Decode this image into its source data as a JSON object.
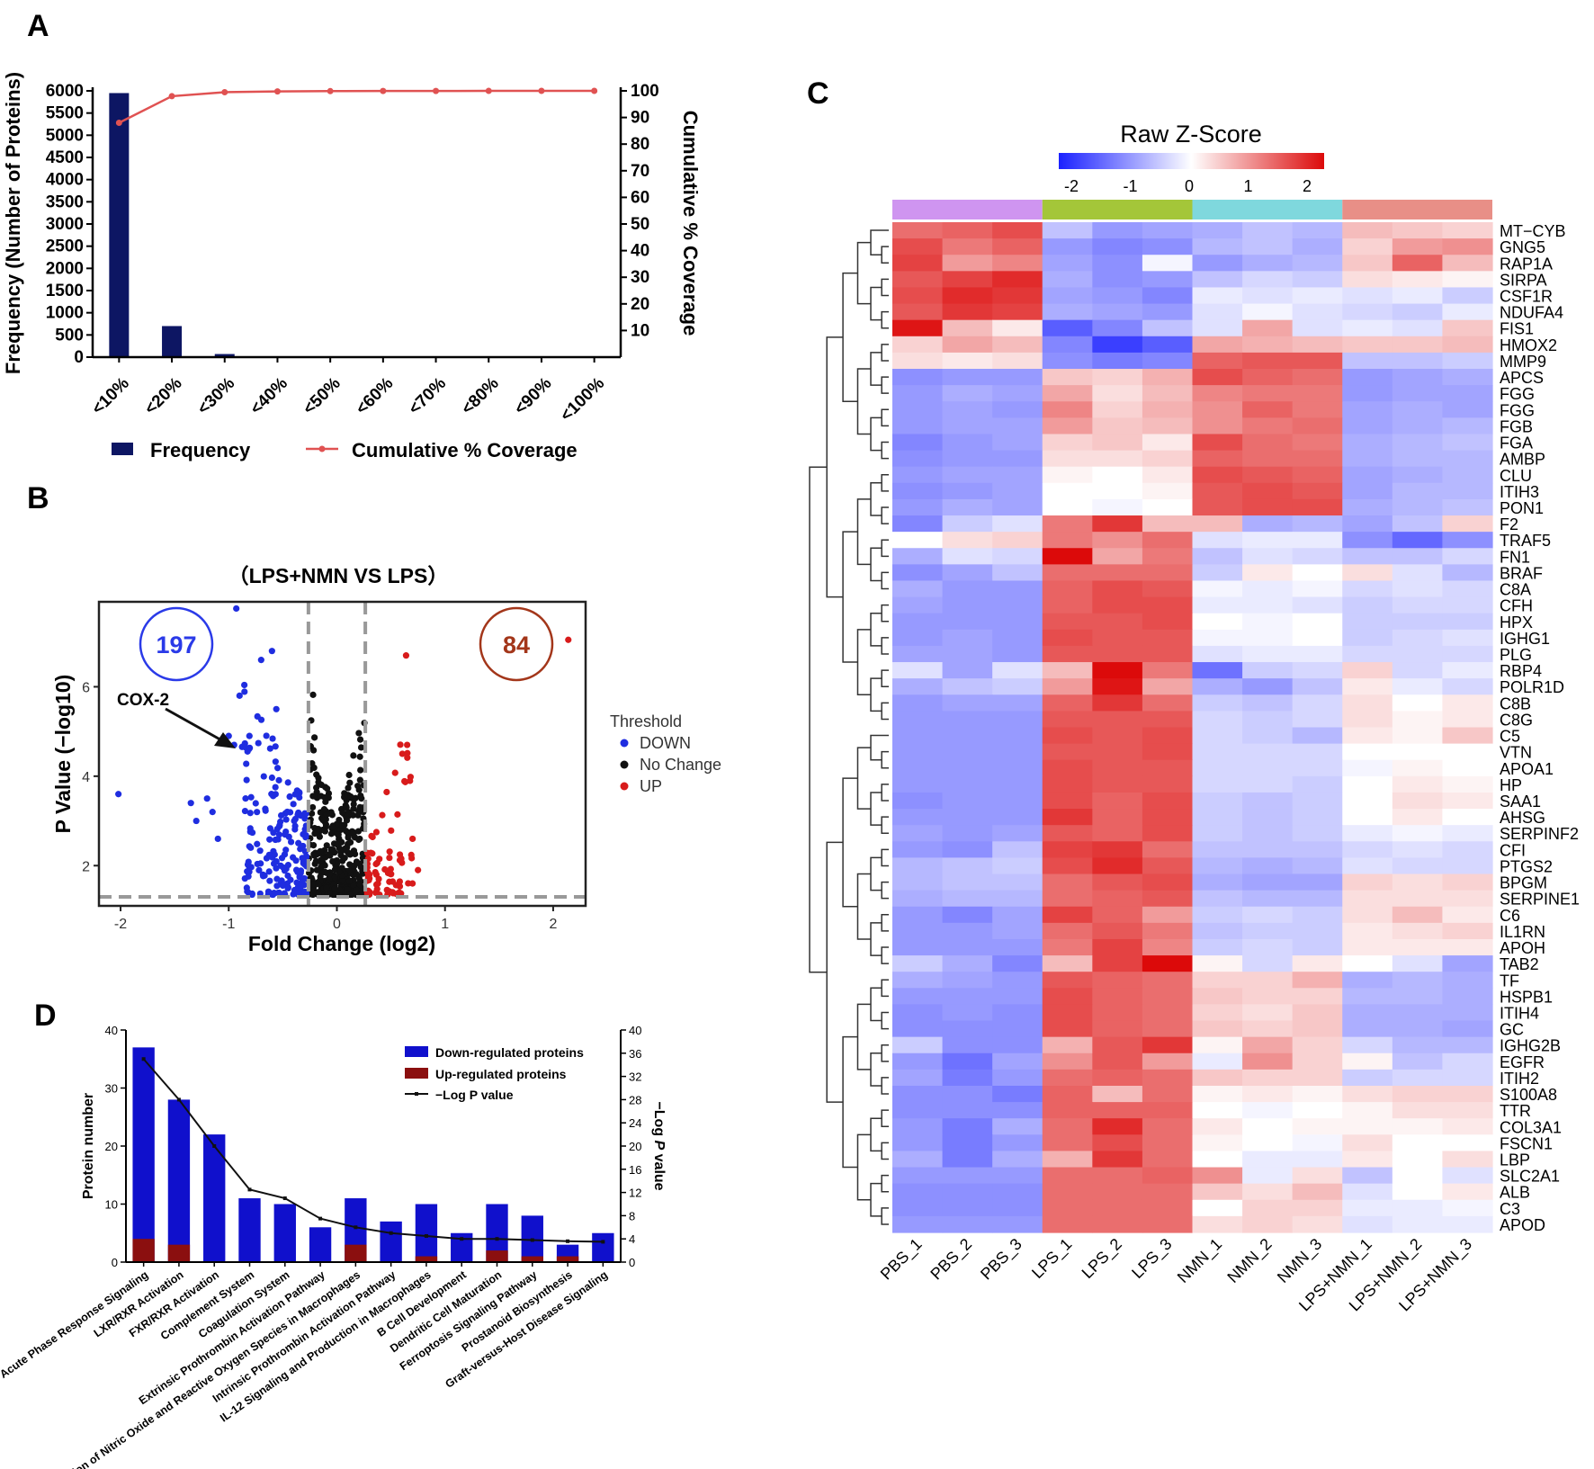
{
  "panel_labels": {
    "a": "A",
    "b": "B",
    "c": "C",
    "d": "D"
  },
  "chart_data": [
    {
      "panel": "A",
      "type": "bar",
      "categories": [
        "<10%",
        "<20%",
        "<30%",
        "<40%",
        "<50%",
        "<60%",
        "<70%",
        "<80%",
        "<90%",
        "<100%"
      ],
      "series": [
        {
          "name": "Frequency",
          "axis": "left",
          "color": "#0d1663",
          "values": [
            5950,
            700,
            70,
            20,
            15,
            12,
            12,
            10,
            10,
            10
          ]
        },
        {
          "name": "Cumulative % Coverage",
          "axis": "right",
          "type": "line",
          "color": "#e05252",
          "values": [
            88,
            98,
            99.5,
            99.8,
            99.9,
            99.95,
            99.97,
            99.98,
            99.99,
            100
          ]
        }
      ],
      "ylabel": "Frequency (Number of Proteins)",
      "y2label": "Cumulative % Coverage",
      "ylim": [
        0,
        6000
      ],
      "yticks": [
        "0",
        "500",
        "1000",
        "1500",
        "2000",
        "2500",
        "3000",
        "3500",
        "4000",
        "4500",
        "5000",
        "5500",
        "6000"
      ],
      "y2lim": [
        0,
        100
      ],
      "y2ticks": [
        "10",
        "20",
        "30",
        "40",
        "50",
        "60",
        "70",
        "80",
        "90",
        "100"
      ],
      "legend": [
        "Frequency",
        "Cumulative % Coverage"
      ]
    },
    {
      "panel": "B",
      "type": "scatter",
      "title": "（LPS+NMN VS LPS）",
      "xlabel": "Fold Change (log2)",
      "ylabel": "P Value (−log10)",
      "xlim": [
        -2.2,
        2.3
      ],
      "ylim": [
        1.1,
        7.9
      ],
      "xticks": [
        "-2",
        "-1",
        "0",
        "1",
        "2"
      ],
      "yticks": [
        "2",
        "4",
        "6"
      ],
      "thresholds": {
        "fc": [
          -0.263,
          0.263
        ],
        "p": 1.3
      },
      "counts": {
        "down": "197",
        "up": "84"
      },
      "annotation": "COX-2",
      "legend_title": "Threshold",
      "legend": [
        {
          "label": "DOWN",
          "color": "#1f2de0"
        },
        {
          "label": "No Change",
          "color": "#111111"
        },
        {
          "label": "UP",
          "color": "#d81b1b"
        }
      ],
      "highlight_points": [
        [
          -0.93,
          7.75
        ],
        [
          -2.02,
          3.6
        ],
        [
          2.14,
          7.05
        ],
        [
          0.64,
          6.7
        ],
        [
          -0.56,
          5.5
        ],
        [
          -0.22,
          5.82
        ]
      ]
    },
    {
      "panel": "C",
      "type": "heatmap",
      "title": "Raw Z-Score",
      "scale_ticks": [
        "-2",
        "-1",
        "0",
        "1",
        "2"
      ],
      "group_colors": [
        "#cf95f0",
        "#a4c639",
        "#7fd8dd",
        "#e88f87"
      ],
      "columns": [
        "PBS_1",
        "PBS_2",
        "PBS_3",
        "LPS_1",
        "LPS_2",
        "LPS_3",
        "NMN_1",
        "NMN_2",
        "NMN_3",
        "LPS+NMN_1",
        "LPS+NMN_2",
        "LPS+NMN_3"
      ],
      "rows": [
        "MT−CYB",
        "GNG5",
        "RAP1A",
        "SIRPA",
        "CSF1R",
        "NDUFA4",
        "FIS1",
        "HMOX2",
        "MMP9",
        "APCS",
        "FGG",
        "FGG",
        "FGB",
        "FGA",
        "AMBP",
        "CLU",
        "ITIH3",
        "PON1",
        "F2",
        "TRAF5",
        "FN1",
        "BRAF",
        "C8A",
        "CFH",
        "HPX",
        "IGHG1",
        "PLG",
        "RBP4",
        "POLR1D",
        "C8B",
        "C8G",
        "C5",
        "VTN",
        "APOA1",
        "HP",
        "SAA1",
        "AHSG",
        "SERPINF2",
        "CFI",
        "PTGS2",
        "BPGM",
        "SERPINE1",
        "C6",
        "IL1RN",
        "APOH",
        "TAB2",
        "TF",
        "HSPB1",
        "ITIH4",
        "GC",
        "IGHG2B",
        "EGFR",
        "ITIH2",
        "S100A8",
        "TTR",
        "COL3A1",
        "FSCN1",
        "LBP",
        "SLC2A1",
        "ALB",
        "C3",
        "APOD"
      ],
      "values": [
        [
          1.3,
          1.4,
          1.6,
          -0.6,
          -1.0,
          -0.9,
          -0.8,
          -0.6,
          -0.7,
          0.6,
          0.5,
          0.4
        ],
        [
          1.6,
          1.2,
          1.4,
          -1.0,
          -1.2,
          -1.1,
          -0.7,
          -0.6,
          -0.8,
          0.4,
          0.9,
          1.0
        ],
        [
          1.7,
          0.9,
          1.1,
          -0.9,
          -1.1,
          -0.1,
          -1.0,
          -0.8,
          -0.7,
          0.5,
          1.4,
          0.6
        ],
        [
          1.5,
          1.7,
          1.9,
          -0.8,
          -1.1,
          -1.0,
          -0.6,
          -0.4,
          -0.5,
          0.3,
          0.2,
          0.1
        ],
        [
          1.6,
          1.9,
          1.8,
          -0.9,
          -1.0,
          -1.2,
          -0.2,
          -0.3,
          -0.2,
          -0.3,
          -0.2,
          -0.5
        ],
        [
          1.5,
          1.8,
          1.7,
          -0.8,
          -0.9,
          -1.0,
          -0.3,
          -0.1,
          -0.3,
          -0.4,
          -0.5,
          -0.2
        ],
        [
          2.1,
          0.6,
          0.2,
          -1.6,
          -1.2,
          -0.6,
          -0.3,
          0.8,
          -0.3,
          -0.2,
          -0.3,
          0.5
        ],
        [
          0.4,
          0.8,
          0.6,
          -1.2,
          -1.9,
          -1.6,
          0.8,
          0.7,
          0.6,
          0.5,
          0.5,
          0.6
        ],
        [
          0.3,
          0.2,
          0.3,
          -1.1,
          -1.3,
          -1.2,
          1.4,
          1.5,
          1.5,
          -0.6,
          -0.6,
          -0.5
        ],
        [
          -1.1,
          -1.0,
          -1.0,
          0.5,
          0.4,
          0.7,
          1.6,
          1.4,
          1.3,
          -1.0,
          -0.9,
          -0.8
        ],
        [
          -1.0,
          -0.8,
          -0.9,
          0.8,
          0.3,
          0.6,
          1.1,
          1.2,
          1.2,
          -1.0,
          -0.9,
          -0.9
        ],
        [
          -1.0,
          -0.9,
          -1.0,
          1.1,
          0.4,
          0.7,
          1.0,
          1.4,
          1.2,
          -0.9,
          -0.8,
          -0.9
        ],
        [
          -1.0,
          -0.9,
          -0.9,
          0.9,
          0.5,
          0.6,
          1.0,
          1.2,
          1.3,
          -0.9,
          -0.8,
          -0.7
        ],
        [
          -1.2,
          -1.0,
          -0.9,
          0.4,
          0.5,
          0.2,
          1.6,
          1.3,
          1.2,
          -0.8,
          -0.7,
          -0.6
        ],
        [
          -1.1,
          -1.0,
          -1.0,
          0.3,
          0.3,
          0.4,
          1.4,
          1.3,
          1.3,
          -0.8,
          -0.7,
          -0.7
        ],
        [
          -1.0,
          -0.9,
          -0.9,
          0.1,
          0.0,
          0.2,
          1.6,
          1.5,
          1.4,
          -0.9,
          -0.8,
          -0.7
        ],
        [
          -1.1,
          -1.0,
          -0.9,
          0.0,
          0.0,
          0.1,
          1.5,
          1.6,
          1.5,
          -0.9,
          -0.7,
          -0.7
        ],
        [
          -1.0,
          -0.8,
          -0.9,
          0.0,
          -0.1,
          0.0,
          1.5,
          1.6,
          1.6,
          -0.8,
          -0.7,
          -0.6
        ],
        [
          -1.2,
          -0.5,
          -0.3,
          1.2,
          1.8,
          0.6,
          0.6,
          -0.8,
          -0.7,
          -0.9,
          -0.6,
          0.4
        ],
        [
          0.0,
          0.3,
          0.4,
          1.2,
          1.0,
          1.3,
          -0.3,
          -0.2,
          -0.2,
          -1.1,
          -1.5,
          -1.1
        ],
        [
          -0.8,
          -0.3,
          -0.4,
          2.3,
          0.8,
          1.2,
          -0.6,
          -0.3,
          -0.4,
          -0.6,
          -0.6,
          -0.4
        ],
        [
          -1.1,
          -0.9,
          -0.6,
          1.3,
          1.3,
          1.3,
          -0.5,
          0.2,
          0.0,
          0.3,
          -0.3,
          -0.7
        ],
        [
          -0.8,
          -1.0,
          -1.0,
          1.4,
          1.6,
          1.5,
          -0.1,
          -0.2,
          -0.1,
          -0.4,
          -0.3,
          -0.4
        ],
        [
          -0.9,
          -1.0,
          -1.0,
          1.4,
          1.6,
          1.6,
          -0.2,
          -0.2,
          -0.3,
          -0.5,
          -0.4,
          -0.4
        ],
        [
          -1.0,
          -1.0,
          -1.0,
          1.5,
          1.5,
          1.6,
          0.0,
          -0.1,
          0.0,
          -0.5,
          -0.5,
          -0.5
        ],
        [
          -1.0,
          -0.9,
          -1.0,
          1.6,
          1.5,
          1.5,
          -0.1,
          -0.1,
          0.0,
          -0.5,
          -0.4,
          -0.3
        ],
        [
          -0.9,
          -0.9,
          -1.0,
          1.5,
          1.5,
          1.5,
          -0.3,
          -0.2,
          -0.2,
          -0.4,
          -0.4,
          -0.4
        ],
        [
          -0.3,
          -0.9,
          -0.3,
          0.6,
          2.3,
          1.2,
          -1.4,
          -0.5,
          -0.4,
          0.4,
          -0.4,
          -0.2
        ],
        [
          -0.8,
          -0.6,
          -0.5,
          0.9,
          2.1,
          0.8,
          -0.8,
          -1.0,
          -0.6,
          0.2,
          -0.2,
          -0.4
        ],
        [
          -1.0,
          -0.9,
          -0.9,
          1.4,
          1.8,
          1.3,
          -0.5,
          -0.6,
          -0.4,
          0.3,
          0.0,
          0.2
        ],
        [
          -1.0,
          -1.0,
          -1.0,
          1.5,
          1.5,
          1.5,
          -0.4,
          -0.5,
          -0.4,
          0.3,
          0.1,
          0.2
        ],
        [
          -1.0,
          -1.0,
          -1.0,
          1.6,
          1.5,
          1.6,
          -0.4,
          -0.5,
          -0.7,
          0.2,
          0.1,
          0.5
        ],
        [
          -1.0,
          -1.0,
          -1.0,
          1.5,
          1.5,
          1.6,
          -0.4,
          -0.4,
          -0.4,
          0.0,
          0.0,
          0.0
        ],
        [
          -1.0,
          -1.0,
          -1.0,
          1.6,
          1.5,
          1.5,
          -0.4,
          -0.4,
          -0.4,
          -0.1,
          0.1,
          0.0
        ],
        [
          -1.0,
          -1.0,
          -1.0,
          1.6,
          1.5,
          1.5,
          -0.4,
          -0.4,
          -0.5,
          0.0,
          0.2,
          0.1
        ],
        [
          -1.1,
          -1.0,
          -1.0,
          1.6,
          1.4,
          1.6,
          -0.5,
          -0.6,
          -0.5,
          0.0,
          0.3,
          0.2
        ],
        [
          -1.0,
          -1.0,
          -1.0,
          1.8,
          1.4,
          1.6,
          -0.5,
          -0.6,
          -0.5,
          0.0,
          0.2,
          0.0
        ],
        [
          -0.9,
          -1.0,
          -0.9,
          1.5,
          1.4,
          1.6,
          -0.5,
          -0.6,
          -0.5,
          -0.2,
          -0.1,
          -0.2
        ],
        [
          -1.0,
          -1.1,
          -0.6,
          1.7,
          1.8,
          1.3,
          -0.6,
          -0.6,
          -0.6,
          -0.4,
          -0.3,
          -0.4
        ],
        [
          -0.7,
          -0.6,
          -0.5,
          1.6,
          1.9,
          1.5,
          -0.7,
          -0.8,
          -0.7,
          -0.3,
          -0.4,
          -0.4
        ],
        [
          -0.7,
          -0.6,
          -0.6,
          1.3,
          1.5,
          1.6,
          -0.8,
          -0.9,
          -0.9,
          0.4,
          0.3,
          0.4
        ],
        [
          -0.8,
          -0.7,
          -0.7,
          1.3,
          1.4,
          1.5,
          -0.6,
          -0.7,
          -0.7,
          0.3,
          0.3,
          0.3
        ],
        [
          -1.0,
          -1.2,
          -0.9,
          1.7,
          1.4,
          0.9,
          -0.5,
          -0.4,
          -0.5,
          0.3,
          0.6,
          0.2
        ],
        [
          -1.0,
          -1.0,
          -0.9,
          1.3,
          1.5,
          1.2,
          -0.6,
          -0.5,
          -0.5,
          0.2,
          0.3,
          0.4
        ],
        [
          -1.0,
          -1.0,
          -1.0,
          1.2,
          1.7,
          1.1,
          -0.5,
          -0.4,
          -0.5,
          0.2,
          0.2,
          0.2
        ],
        [
          -0.5,
          -0.8,
          -1.2,
          0.6,
          1.7,
          2.2,
          0.1,
          -0.4,
          0.2,
          0.0,
          -0.3,
          -0.9
        ],
        [
          -0.8,
          -0.9,
          -1.0,
          1.5,
          1.4,
          1.3,
          0.4,
          0.4,
          0.7,
          -0.8,
          -0.7,
          -0.8
        ],
        [
          -1.0,
          -1.0,
          -1.0,
          1.6,
          1.4,
          1.3,
          0.5,
          0.4,
          0.4,
          -0.7,
          -0.7,
          -0.8
        ],
        [
          -1.1,
          -1.0,
          -1.1,
          1.6,
          1.4,
          1.3,
          0.4,
          0.3,
          0.5,
          -0.8,
          -0.8,
          -0.8
        ],
        [
          -1.1,
          -1.1,
          -1.1,
          1.6,
          1.4,
          1.3,
          0.5,
          0.4,
          0.5,
          -0.8,
          -0.8,
          -0.9
        ],
        [
          -0.5,
          -1.1,
          -1.1,
          0.7,
          1.5,
          1.8,
          0.1,
          0.8,
          0.4,
          -0.4,
          -0.7,
          -0.7
        ],
        [
          -1.0,
          -1.4,
          -0.9,
          1.0,
          1.5,
          0.9,
          -0.2,
          1.0,
          0.4,
          0.1,
          -0.6,
          -0.4
        ],
        [
          -0.9,
          -1.3,
          -1.0,
          1.3,
          1.4,
          1.3,
          0.5,
          0.4,
          0.4,
          -0.5,
          -0.4,
          -0.4
        ],
        [
          -1.1,
          -1.1,
          -1.3,
          1.4,
          0.6,
          1.3,
          0.1,
          0.2,
          0.1,
          0.3,
          0.4,
          0.4
        ],
        [
          -1.1,
          -1.1,
          -1.1,
          1.4,
          1.4,
          1.4,
          0.0,
          -0.1,
          0.0,
          0.1,
          0.3,
          0.3
        ],
        [
          -1.0,
          -1.3,
          -0.8,
          1.3,
          1.9,
          1.3,
          0.2,
          0.0,
          0.1,
          0.1,
          0.1,
          0.2
        ],
        [
          -1.0,
          -1.3,
          -1.0,
          1.3,
          1.6,
          1.3,
          0.1,
          0.0,
          -0.1,
          0.3,
          0.0,
          0.0
        ],
        [
          -0.8,
          -1.3,
          -0.8,
          0.7,
          1.8,
          1.3,
          0.0,
          -0.2,
          -0.2,
          0.2,
          0.0,
          0.3
        ],
        [
          -1.0,
          -1.0,
          -1.0,
          1.3,
          1.3,
          1.4,
          1.0,
          -0.2,
          0.3,
          -0.6,
          0.0,
          -0.3
        ],
        [
          -1.1,
          -1.1,
          -1.1,
          1.3,
          1.3,
          1.3,
          0.5,
          0.3,
          0.6,
          -0.3,
          0.0,
          0.2
        ],
        [
          -1.1,
          -1.1,
          -1.1,
          1.3,
          1.3,
          1.3,
          0.0,
          0.4,
          0.4,
          -0.2,
          -0.2,
          -0.1
        ],
        [
          -1.0,
          -1.0,
          -1.0,
          1.3,
          1.3,
          1.3,
          0.3,
          0.4,
          0.3,
          -0.3,
          -0.2,
          -0.2
        ]
      ]
    },
    {
      "panel": "D",
      "type": "bar",
      "stacked": true,
      "categories": [
        "Acute Phase Response Signaling",
        "LXR/RXR Activation",
        "FXR/RXR Activation",
        "Complement System",
        "Coagulation System",
        "Extrinsic Prothrombin Activation Pathway",
        "Production of Nitric Oxide and Reactive Oxygen Species in Macrophages",
        "Intrinsic Prothrombin Activation Pathway",
        "IL-12 Signaling and Production in Macrophages",
        "B Cell Development",
        "Dendritic Cell Maturation",
        "Ferroptosis Signaling Pathway",
        "Prostanoid Biosynthesis",
        "Graft-versus-Host Disease Signaling"
      ],
      "series": [
        {
          "name": "Down-regulated proteins",
          "color": "#1010cc",
          "values": [
            37,
            28,
            22,
            11,
            10,
            6,
            11,
            7,
            10,
            5,
            10,
            8,
            3,
            5
          ]
        },
        {
          "name": "Up-regulated proteins",
          "color": "#8b0f0f",
          "values": [
            4,
            3,
            0,
            0,
            0,
            0,
            3,
            0,
            1,
            0,
            2,
            1,
            1,
            0
          ]
        },
        {
          "name": "−Log P value",
          "type": "line",
          "color": "#111111",
          "values": [
            35,
            28,
            20,
            12.5,
            11,
            7.5,
            6,
            5,
            4.5,
            4,
            4,
            3.8,
            3.6,
            3.5
          ]
        }
      ],
      "ylabel": "Protein number",
      "y2label_prefix": "−Log ",
      "y2label_italic": "P",
      "y2label_suffix": " value",
      "ylim": [
        0,
        40
      ],
      "yticks": [
        "0",
        "10",
        "20",
        "30",
        "40"
      ],
      "y2lim": [
        0,
        40
      ],
      "y2ticks": [
        "0",
        "4",
        "8",
        "12",
        "16",
        "20",
        "24",
        "28",
        "32",
        "36",
        "40"
      ],
      "legend": [
        "Down-regulated proteins",
        "Up-regulated proteins",
        "−Log P value"
      ]
    }
  ]
}
